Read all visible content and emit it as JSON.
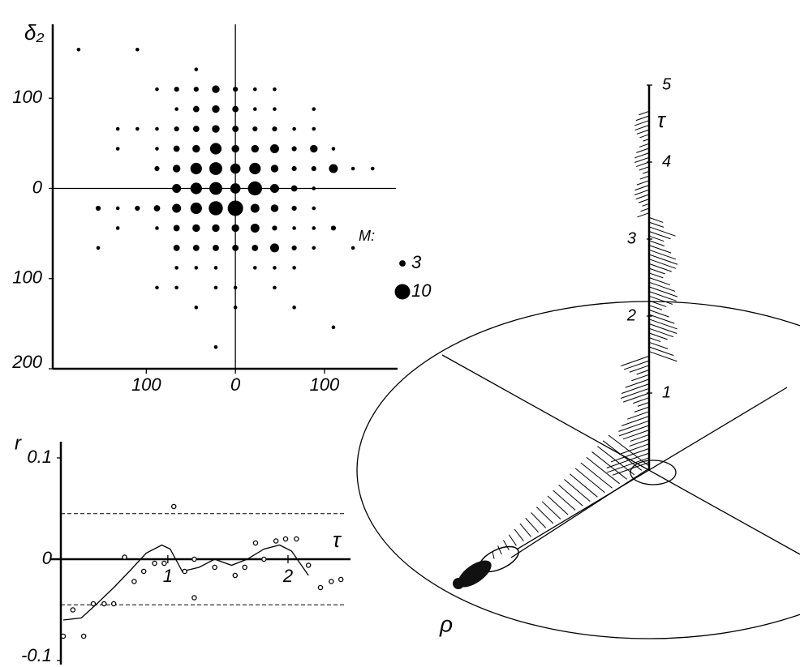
{
  "chart_data": [
    {
      "type": "bubble",
      "ylabel": "δ₂",
      "color": "#000000",
      "x": [
        -176,
        -110,
        -44,
        -88,
        -66,
        -44,
        -22,
        0,
        22,
        44,
        -66,
        -44,
        -22,
        0,
        22,
        44,
        88,
        -132,
        -110,
        -88,
        -66,
        -44,
        -22,
        0,
        22,
        44,
        66,
        88,
        -132,
        -88,
        -66,
        -44,
        -22,
        0,
        22,
        44,
        66,
        88,
        110,
        -88,
        -66,
        -44,
        -22,
        0,
        22,
        44,
        66,
        88,
        110,
        132,
        154,
        -66,
        -44,
        -22,
        0,
        22,
        44,
        66,
        88,
        -154,
        -132,
        -110,
        -88,
        -66,
        -44,
        -22,
        0,
        22,
        44,
        66,
        88,
        -132,
        -88,
        -66,
        -44,
        -22,
        0,
        22,
        44,
        66,
        88,
        110,
        -154,
        -66,
        -44,
        -22,
        0,
        22,
        44,
        66,
        88,
        132,
        -66,
        -44,
        -22,
        22,
        44,
        66,
        -88,
        -66,
        -22,
        0,
        44,
        -44,
        0,
        66,
        110,
        -22
      ],
      "y": [
        154,
        154,
        132,
        110,
        110,
        110,
        110,
        110,
        110,
        110,
        88,
        88,
        88,
        88,
        88,
        88,
        88,
        66,
        66,
        66,
        66,
        66,
        66,
        66,
        66,
        66,
        66,
        66,
        44,
        44,
        44,
        44,
        44,
        44,
        44,
        44,
        44,
        44,
        44,
        22,
        22,
        22,
        22,
        22,
        22,
        22,
        22,
        22,
        22,
        22,
        22,
        0,
        0,
        0,
        0,
        0,
        0,
        0,
        0,
        -22,
        -22,
        -22,
        -22,
        -22,
        -22,
        -22,
        -22,
        -22,
        -22,
        -22,
        -22,
        -44,
        -44,
        -44,
        -44,
        -44,
        -44,
        -44,
        -44,
        -44,
        -44,
        -44,
        -66,
        -66,
        -66,
        -66,
        -66,
        -66,
        -66,
        -66,
        -66,
        -66,
        -88,
        -88,
        -88,
        -88,
        -88,
        -88,
        -110,
        -110,
        -110,
        -110,
        -110,
        -132,
        -132,
        -132,
        -154,
        -176
      ],
      "sizes": [
        1,
        1,
        1,
        1,
        2,
        2,
        4,
        2,
        1,
        1,
        1,
        3,
        4,
        3,
        1,
        1,
        1,
        1,
        1,
        1,
        2,
        3,
        4,
        3,
        2,
        2,
        1,
        1,
        1,
        1,
        3,
        4,
        7,
        4,
        4,
        5,
        2,
        4,
        1,
        2,
        4,
        7,
        8,
        6,
        7,
        4,
        2,
        2,
        5,
        1,
        1,
        5,
        7,
        8,
        6,
        9,
        5,
        3,
        1,
        2,
        1,
        2,
        3,
        5,
        7,
        9,
        10,
        5,
        4,
        2,
        1,
        1,
        1,
        3,
        4,
        4,
        4,
        5,
        2,
        1,
        1,
        2,
        1,
        3,
        3,
        3,
        3,
        3,
        5,
        2,
        1,
        1,
        1,
        1,
        1,
        1,
        1,
        1,
        1,
        1,
        1,
        1,
        1,
        1,
        1,
        1,
        1,
        1
      ],
      "xlim": [
        -205,
        182
      ],
      "ylim": [
        -200,
        182
      ],
      "xticks": [
        {
          "value": -100,
          "label": "100"
        },
        0,
        100
      ],
      "yticks": [
        {
          "value": -200,
          "label": "200"
        },
        {
          "value": -100,
          "label": "100"
        },
        0,
        100
      ],
      "size_legend": {
        "title": "M:",
        "sizes": [
          3,
          10
        ]
      }
    },
    {
      "type": "line",
      "ylabel": "r",
      "xlabel": "τ",
      "color": "#000000",
      "xlim": [
        0.11,
        2.52
      ],
      "ylim": [
        -0.104,
        0.116
      ],
      "xticks": [
        1,
        2
      ],
      "yticks": [
        -0.1,
        0,
        0.1
      ],
      "bounds": [
        0.045,
        -0.045
      ],
      "series": [
        {
          "style": "line",
          "x": [
            0.13,
            0.28,
            0.41,
            0.55,
            0.68,
            0.82,
            0.95,
            1.02,
            1.12,
            1.26,
            1.39,
            1.53,
            1.66,
            1.8,
            1.93,
            2.03,
            2.17
          ],
          "values": [
            -0.06,
            -0.058,
            -0.044,
            -0.028,
            -0.012,
            0.006,
            0.014,
            0.01,
            -0.012,
            -0.008,
            0,
            -0.006,
            0,
            0.01,
            0.014,
            0.008,
            -0.016
          ]
        },
        {
          "style": "points",
          "x": [
            0.13,
            0.21,
            0.3,
            0.38,
            0.47,
            0.55,
            0.64,
            0.72,
            0.8,
            0.89,
            0.97,
            1.05,
            1.14,
            1.22,
            1.22,
            1.39,
            1.56,
            1.64,
            1.73,
            1.8,
            1.9,
            1.98,
            2.07,
            2.17,
            2.27,
            2.36,
            2.44
          ],
          "values": [
            -0.076,
            -0.05,
            -0.076,
            -0.044,
            -0.044,
            -0.044,
            0.002,
            -0.022,
            -0.012,
            -0.004,
            -0.004,
            0.052,
            -0.012,
            0,
            -0.038,
            -0.008,
            -0.016,
            -0.008,
            0.016,
            0,
            0.018,
            0.02,
            0.02,
            -0.006,
            -0.028,
            -0.022,
            -0.02
          ]
        }
      ]
    },
    {
      "type": "tau-axis",
      "ylabel": "τ",
      "xlabel": "ρ",
      "ylim": [
        0,
        5
      ],
      "yticks": [
        1,
        2,
        3,
        4,
        5
      ]
    }
  ]
}
